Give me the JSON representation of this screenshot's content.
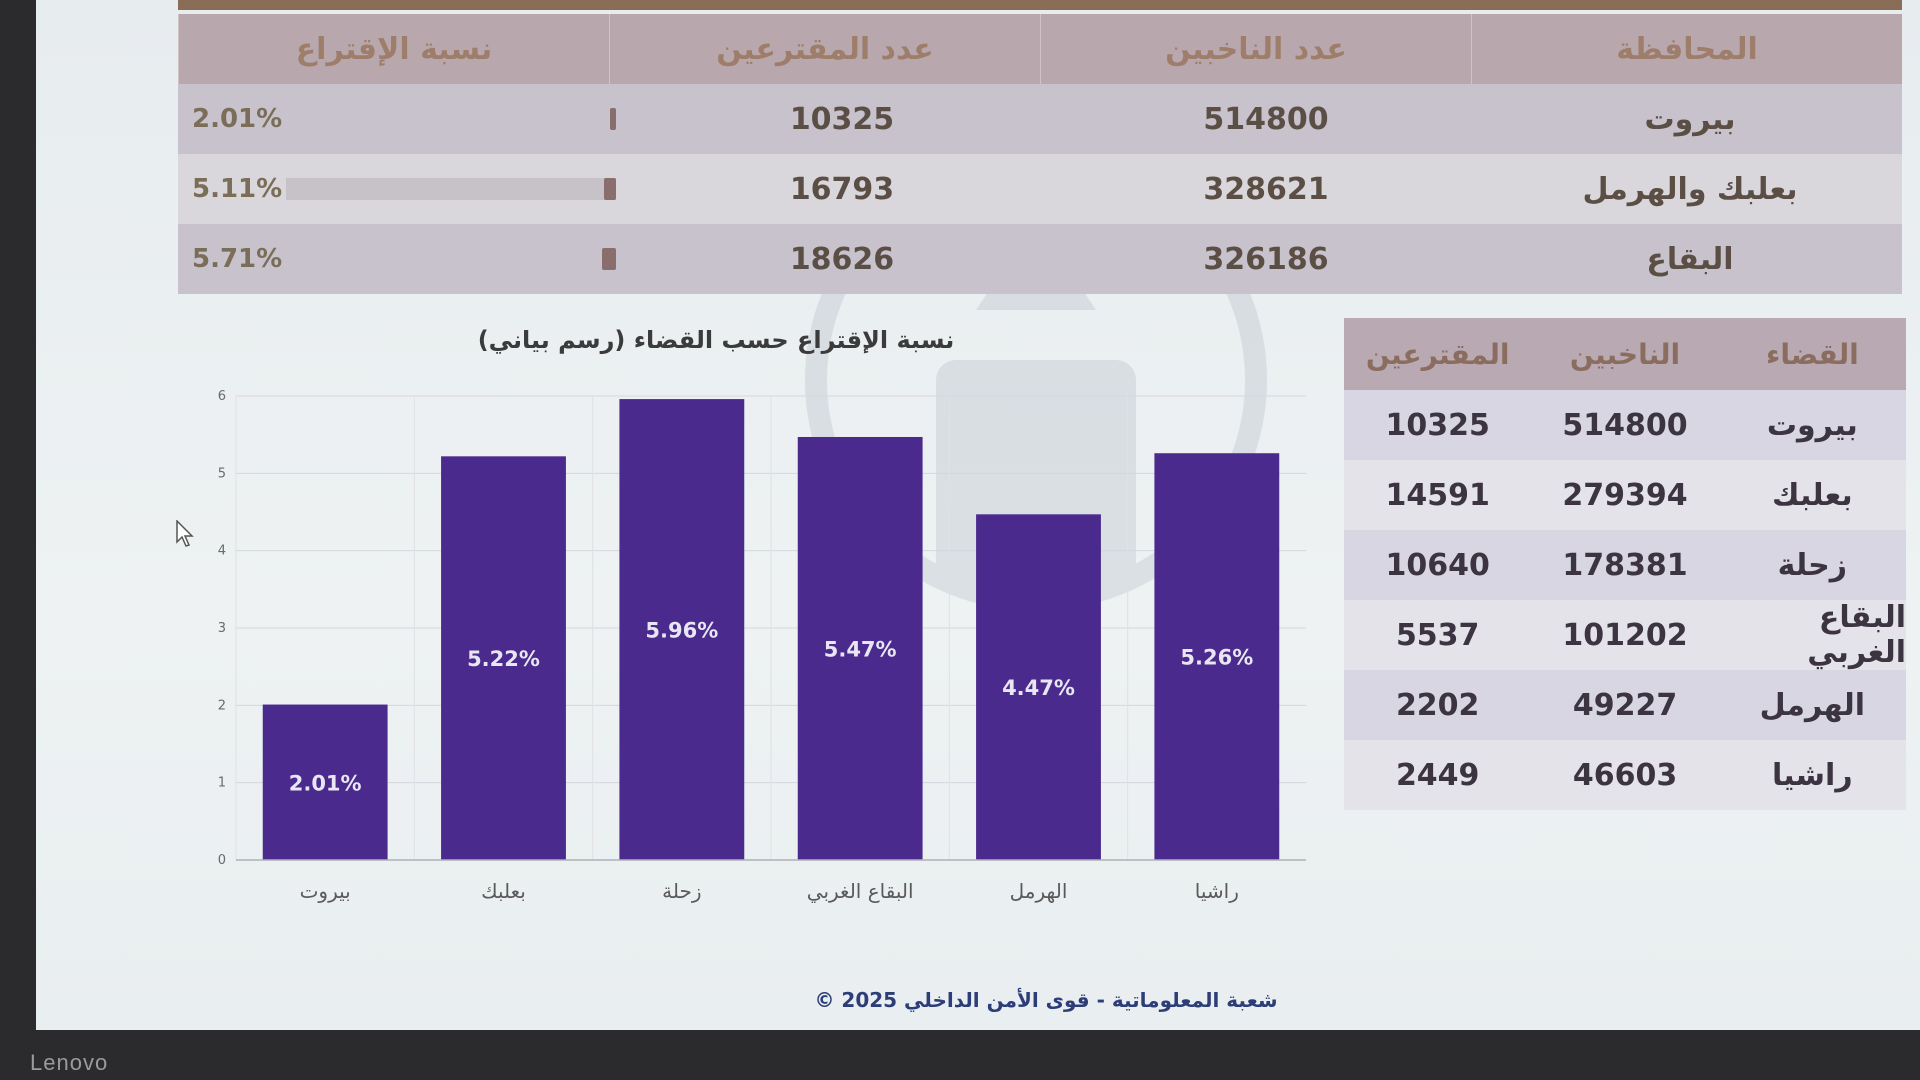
{
  "governorates": {
    "headers": [
      "المحافظة",
      "عدد الناخبين",
      "عدد المقترعين",
      "نسبة الإقتراع"
    ],
    "rows": [
      {
        "name": "بيروت",
        "voters": "514800",
        "ballots": "10325",
        "pct_label": "2.01%",
        "pct": 2.01
      },
      {
        "name": "بعلبك والهرمل",
        "voters": "328621",
        "ballots": "16793",
        "pct_label": "5.11%",
        "pct": 5.11
      },
      {
        "name": "البقاع",
        "voters": "326186",
        "ballots": "18626",
        "pct_label": "5.71%",
        "pct": 5.71
      }
    ]
  },
  "chart_data": {
    "type": "bar",
    "title": "نسبة الإقتراع حسب القضاء (رسم بياني)",
    "categories": [
      "بيروت",
      "بعلبك",
      "زحلة",
      "البقاع الغربي",
      "الهرمل",
      "راشيا"
    ],
    "values": [
      2.01,
      5.22,
      5.96,
      5.47,
      4.47,
      5.26
    ],
    "data_labels": [
      "2.01%",
      "5.22%",
      "5.96%",
      "5.47%",
      "4.47%",
      "5.26%"
    ],
    "ylim": [
      0,
      6
    ],
    "yticks": [
      "0",
      "1",
      "2",
      "3",
      "4",
      "5",
      "6"
    ],
    "grid": true,
    "bar_color": "#4a2a8c"
  },
  "districts": {
    "headers": [
      "القضاء",
      "الناخبين",
      "المقترعين"
    ],
    "rows": [
      {
        "name": "بيروت",
        "voters": "514800",
        "ballots": "10325"
      },
      {
        "name": "بعلبك",
        "voters": "279394",
        "ballots": "14591"
      },
      {
        "name": "زحلة",
        "voters": "178381",
        "ballots": "10640"
      },
      {
        "name": "البقاع الغربي",
        "voters": "101202",
        "ballots": "5537"
      },
      {
        "name": "الهرمل",
        "voters": "49227",
        "ballots": "2202"
      },
      {
        "name": "راشيا",
        "voters": "46603",
        "ballots": "2449"
      }
    ]
  },
  "footer": "© شعبة المعلوماتية - قوى الأمن الداخلي 2025",
  "bezel_label": "Lenovo"
}
